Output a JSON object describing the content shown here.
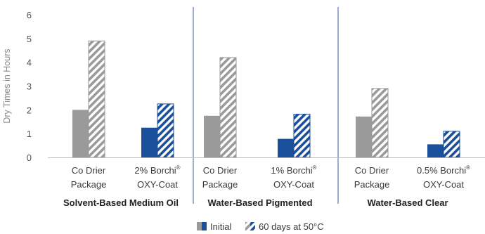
{
  "chart_data": {
    "type": "bar",
    "ylabel": "Dry Times in Hours",
    "ylim": [
      0,
      6
    ],
    "yticks": [
      0,
      1,
      2,
      3,
      4,
      5,
      6
    ],
    "grid": false,
    "legend_position": "bottom-center",
    "groups": [
      {
        "name": "Solvent-Based Medium Oil",
        "categories": [
          {
            "line1": "Co Drier",
            "line2": "Package",
            "sup": "",
            "values": [
              2.0,
              4.9
            ],
            "color": "#9a9a9a"
          },
          {
            "line1": "2% Borchi",
            "line2": "OXY-Coat",
            "sup": "®",
            "values": [
              1.25,
              2.25
            ],
            "color": "#1a4f9c"
          }
        ]
      },
      {
        "name": "Water-Based Pigmented",
        "categories": [
          {
            "line1": "Co Drier",
            "line2": "Package",
            "sup": "",
            "values": [
              1.75,
              4.2
            ],
            "color": "#9a9a9a"
          },
          {
            "line1": "1% Borchi",
            "line2": "OXY-Coat",
            "sup": "®",
            "values": [
              0.78,
              1.82
            ],
            "color": "#1a4f9c"
          }
        ]
      },
      {
        "name": "Water-Based Clear",
        "categories": [
          {
            "line1": "Co Drier",
            "line2": "Package",
            "sup": "",
            "values": [
              1.72,
              2.9
            ],
            "color": "#9a9a9a"
          },
          {
            "line1": "0.5% Borchi",
            "line2": "OXY-Coat",
            "sup": "®",
            "values": [
              0.55,
              1.1
            ],
            "color": "#1a4f9c"
          }
        ]
      }
    ],
    "series": [
      {
        "name": "Initial",
        "pattern": "solid"
      },
      {
        "name": "60 days at 50°C",
        "pattern": "hatched"
      }
    ],
    "colors": {
      "grey": "#9a9a9a",
      "blue": "#1a4f9c",
      "axis": "#bfbfbf",
      "divider": "#2f5d9e",
      "text": "#3a3a3a"
    }
  }
}
